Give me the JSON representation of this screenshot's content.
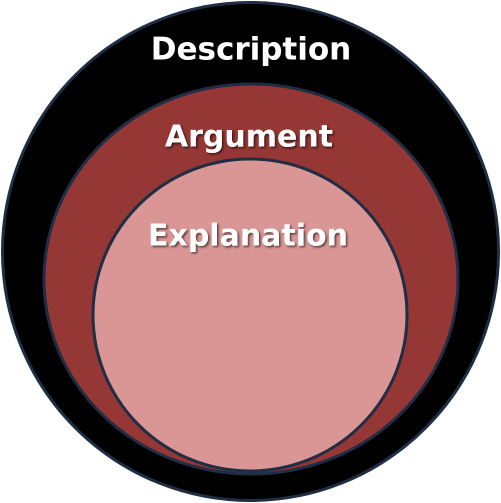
{
  "diagram": {
    "outer": {
      "label": "Description",
      "fill": "#000000",
      "stroke": "#1f2e44"
    },
    "middle": {
      "label": "Argument",
      "fill": "#953735",
      "stroke": "#1f2e44"
    },
    "inner": {
      "label": "Explanation",
      "fill": "#d99694",
      "stroke": "#1f2e44"
    }
  }
}
